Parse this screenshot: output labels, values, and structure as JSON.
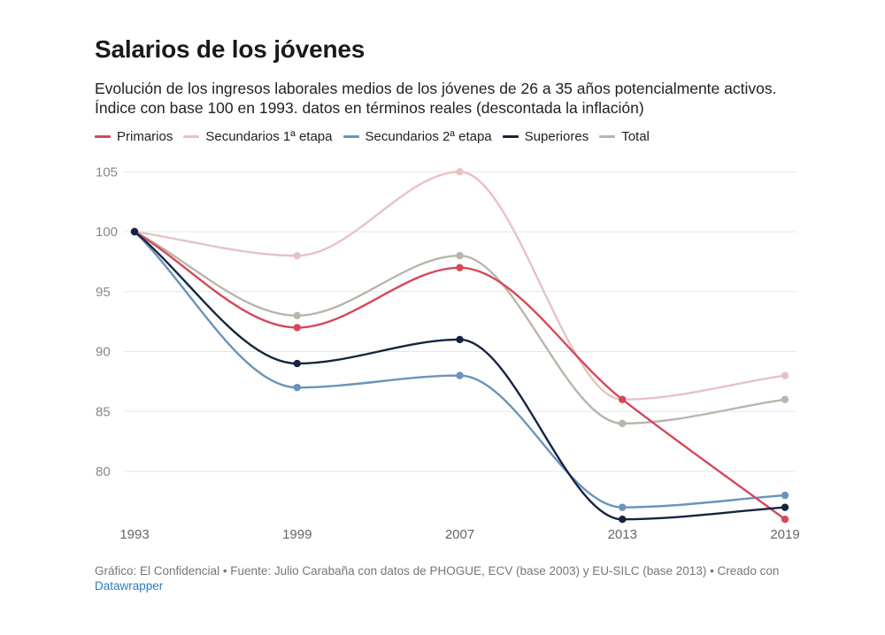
{
  "header": {
    "title": "Salarios de los jóvenes",
    "subtitle_line1": "Evolución de los ingresos laborales medios de los jóvenes de 26 a 35 años potencialmente activos.",
    "subtitle_line2": "Índice con base 100 en 1993. datos en términos reales (descontada la inflación)"
  },
  "footer": {
    "text": "Gráfico: El Confidencial • Fuente: Julio Carabaña con datos de PHOGUE, ECV (base 2003) y EU-SILC (base 2013) • Creado con",
    "link_label": "Datawrapper"
  },
  "chart_data": {
    "type": "line",
    "title": "Salarios de los jóvenes",
    "x": [
      "1993",
      "1999",
      "2007",
      "2013",
      "2019"
    ],
    "yticks": [
      80,
      85,
      90,
      95,
      100,
      105
    ],
    "ylim": [
      75.5,
      106.5
    ],
    "series": [
      {
        "name": "Primarios",
        "color": "#d5485a",
        "values": [
          100,
          92,
          97,
          86,
          76
        ]
      },
      {
        "name": "Secundarios 1ª etapa",
        "color": "#e8c1c6",
        "values": [
          100,
          98,
          105,
          86,
          88
        ]
      },
      {
        "name": "Secundarios 2ª etapa",
        "color": "#6b93bb",
        "values": [
          100,
          87,
          88,
          77,
          78
        ]
      },
      {
        "name": "Superiores",
        "color": "#15253f",
        "values": [
          100,
          89,
          91,
          76,
          77
        ]
      },
      {
        "name": "Total",
        "color": "#b8b6ab",
        "values": [
          100,
          93,
          98,
          84,
          86
        ]
      }
    ],
    "grid": true,
    "legend": "top-left"
  }
}
